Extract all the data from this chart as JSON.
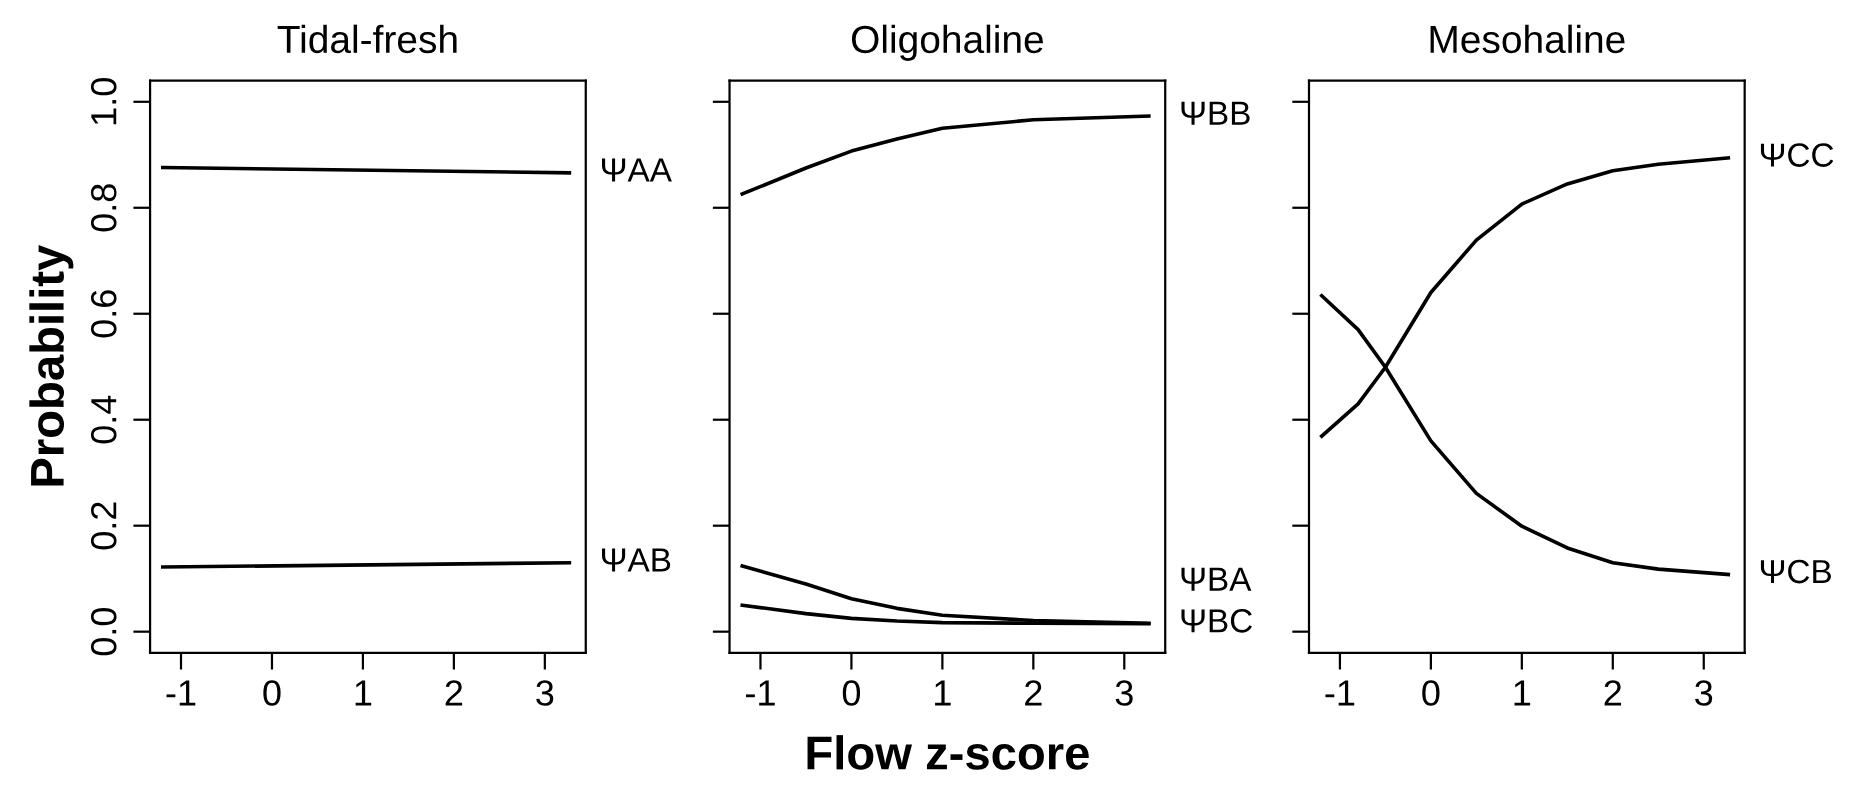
{
  "chart_data": [
    {
      "type": "line",
      "title": "Tidal-fresh",
      "ylabel": "Probability",
      "xlim": [
        -1.34,
        3.45
      ],
      "ylim": [
        -0.04,
        1.04
      ],
      "xticks": [
        -1,
        0,
        1,
        2,
        3
      ],
      "yticks": [
        {
          "value": 0,
          "label": "0.0"
        },
        0.2,
        0.4,
        0.6,
        0.8,
        {
          "value": 1,
          "label": "1.0"
        }
      ],
      "grid": false,
      "legend": "right",
      "series": [
        {
          "name": "ΨAA",
          "color": "#000000",
          "x": [
            -1.2,
            3.27
          ],
          "values": [
            0.876,
            0.866
          ]
        },
        {
          "name": "ΨAB",
          "color": "#000000",
          "x": [
            -1.2,
            3.27
          ],
          "values": [
            0.122,
            0.13
          ]
        }
      ]
    },
    {
      "type": "line",
      "title": "Oligohaline",
      "xlabel": "Flow z-score",
      "xlim": [
        -1.34,
        3.45
      ],
      "ylim": [
        -0.04,
        1.04
      ],
      "xticks": [
        -1,
        0,
        1,
        2,
        3
      ],
      "yticks": [
        0.0,
        0.2,
        0.4,
        0.6,
        0.8,
        1.0
      ],
      "tick_labels": "x",
      "grid": false,
      "legend": "right",
      "series": [
        {
          "name": "ΨBB",
          "color": "#000000",
          "x": [
            -1.2,
            -0.5,
            0,
            0.5,
            1,
            2,
            3.27
          ],
          "values": [
            0.826,
            0.875,
            0.907,
            0.93,
            0.95,
            0.966,
            0.973
          ]
        },
        {
          "name": "ΨBA",
          "color": "#000000",
          "x": [
            -1.2,
            -0.5,
            0,
            0.5,
            1,
            2,
            3.27
          ],
          "values": [
            0.124,
            0.09,
            0.062,
            0.044,
            0.031,
            0.021,
            0.016
          ]
        },
        {
          "name": "ΨBC",
          "color": "#000000",
          "x": [
            -1.2,
            -0.5,
            0,
            0.5,
            1,
            2,
            3.27
          ],
          "values": [
            0.05,
            0.034,
            0.025,
            0.02,
            0.017,
            0.016,
            0.015
          ]
        }
      ]
    },
    {
      "type": "line",
      "title": "Mesohaline",
      "xlim": [
        -1.34,
        3.45
      ],
      "ylim": [
        -0.04,
        1.04
      ],
      "xticks": [
        -1,
        0,
        1,
        2,
        3
      ],
      "yticks": [
        0.0,
        0.2,
        0.4,
        0.6,
        0.8,
        1.0
      ],
      "tick_labels": "x",
      "grid": false,
      "legend": "right",
      "series": [
        {
          "name": "ΨCC",
          "color": "#000000",
          "x": [
            -1.2,
            -0.8,
            -0.5,
            0,
            0.5,
            1,
            1.5,
            2,
            2.5,
            3.27
          ],
          "values": [
            0.369,
            0.43,
            0.499,
            0.64,
            0.739,
            0.807,
            0.845,
            0.87,
            0.882,
            0.894
          ]
        },
        {
          "name": "ΨCB",
          "color": "#000000",
          "x": [
            -1.2,
            -0.8,
            -0.5,
            0,
            0.5,
            1,
            1.5,
            2,
            2.5,
            3.27
          ],
          "values": [
            0.634,
            0.57,
            0.499,
            0.36,
            0.261,
            0.199,
            0.158,
            0.13,
            0.118,
            0.108
          ]
        }
      ]
    }
  ]
}
